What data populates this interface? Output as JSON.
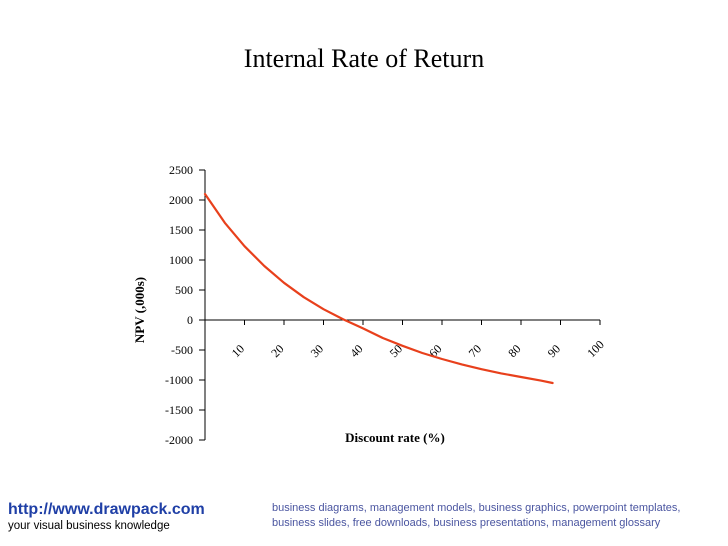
{
  "chart_data": {
    "type": "line",
    "title": "Internal Rate of Return",
    "xlabel": "Discount rate (%)",
    "ylabel": "NPV (,000s)",
    "x_ticks": [
      "10",
      "20",
      "30",
      "40",
      "50",
      "60",
      "70",
      "80",
      "90",
      "100"
    ],
    "y_ticks": [
      2500,
      2000,
      1500,
      1000,
      500,
      0,
      -500,
      -1000,
      -1500,
      -2000
    ],
    "ylim": [
      -2000,
      2500
    ],
    "xlim": [
      0,
      100
    ],
    "grid": false,
    "series": [
      {
        "color": "#e8401c",
        "x": [
          0,
          5,
          10,
          15,
          20,
          25,
          30,
          35,
          40,
          45,
          50,
          55,
          60,
          65,
          70,
          75,
          80,
          85,
          88
        ],
        "y": [
          2100,
          1620,
          1230,
          900,
          620,
          380,
          180,
          10,
          -140,
          -300,
          -430,
          -550,
          -650,
          -740,
          -820,
          -890,
          -950,
          -1010,
          -1050
        ]
      }
    ]
  },
  "footer": {
    "url": "http://www.drawpack.com",
    "tagline": "your visual business knowledge",
    "description": "business diagrams, management models, business graphics, powerpoint templates, business slides, free downloads, business presentations, management glossary"
  }
}
